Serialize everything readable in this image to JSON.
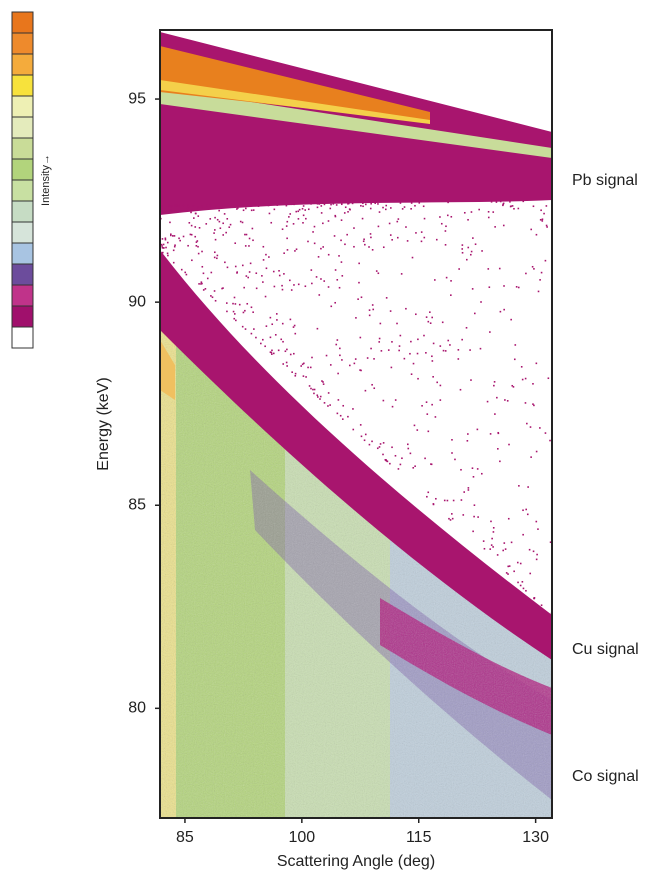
{
  "chart_data": {
    "type": "heatmap",
    "xlabel": "Scattering Angle (deg)",
    "ylabel": "Energy (keV)",
    "xlim": [
      81.8,
      132.1
    ],
    "ylim": [
      77.3,
      96.7
    ],
    "xticks": [
      85,
      100,
      115,
      130
    ],
    "yticks": [
      80,
      85,
      90,
      95
    ],
    "colorbar": {
      "label": "Intensity→",
      "colors": [
        "#e8761c",
        "#ee8a2c",
        "#f4ab3c",
        "#f7e23c",
        "#eef0b4",
        "#e4ebbc",
        "#c9dc98",
        "#b2d47c",
        "#c8e0a2",
        "#c6dcc4",
        "#d6e4da",
        "#a8c4e2",
        "#6c4c9c",
        "#c0338a",
        "#a0106c",
        "#ffffff"
      ]
    },
    "annotations": [
      "Pb signal",
      "Cu signal",
      "Co signal"
    ]
  }
}
